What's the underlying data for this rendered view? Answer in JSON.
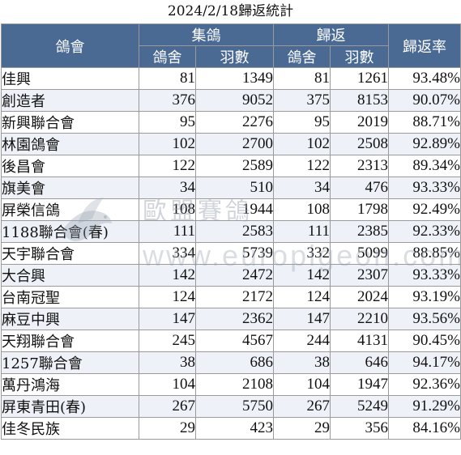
{
  "title": "2024/2/18歸返統計",
  "headers": {
    "club": "鴿會",
    "collected": "集鴿",
    "returned": "歸返",
    "rate": "歸返率",
    "lofts": "鴿舍",
    "birds": "羽數"
  },
  "watermark": {
    "text": "歐盟賽鴿",
    "url": "www.europigeon.com"
  },
  "rows": [
    {
      "club": "佳興",
      "c_lofts": "81",
      "c_birds": "1349",
      "r_lofts": "81",
      "r_birds": "1261",
      "rate": "93.48%"
    },
    {
      "club": "創造者",
      "c_lofts": "376",
      "c_birds": "9052",
      "r_lofts": "375",
      "r_birds": "8153",
      "rate": "90.07%"
    },
    {
      "club": "新興聯合會",
      "c_lofts": "95",
      "c_birds": "2276",
      "r_lofts": "95",
      "r_birds": "2019",
      "rate": "88.71%"
    },
    {
      "club": "林園鴿會",
      "c_lofts": "102",
      "c_birds": "2700",
      "r_lofts": "102",
      "r_birds": "2508",
      "rate": "92.89%"
    },
    {
      "club": "後昌會",
      "c_lofts": "122",
      "c_birds": "2589",
      "r_lofts": "122",
      "r_birds": "2313",
      "rate": "89.34%"
    },
    {
      "club": "旗美會",
      "c_lofts": "34",
      "c_birds": "510",
      "r_lofts": "34",
      "r_birds": "476",
      "rate": "93.33%"
    },
    {
      "club": "屏榮信鴿",
      "c_lofts": "108",
      "c_birds": "1944",
      "r_lofts": "108",
      "r_birds": "1798",
      "rate": "92.49%"
    },
    {
      "club": "1188聯合會(春)",
      "c_lofts": "111",
      "c_birds": "2583",
      "r_lofts": "111",
      "r_birds": "2385",
      "rate": "92.33%"
    },
    {
      "club": "天宇聯合會",
      "c_lofts": "334",
      "c_birds": "5739",
      "r_lofts": "332",
      "r_birds": "5099",
      "rate": "88.85%"
    },
    {
      "club": "大合興",
      "c_lofts": "142",
      "c_birds": "2472",
      "r_lofts": "142",
      "r_birds": "2307",
      "rate": "93.33%"
    },
    {
      "club": "台南冠聖",
      "c_lofts": "124",
      "c_birds": "2172",
      "r_lofts": "124",
      "r_birds": "2024",
      "rate": "93.19%"
    },
    {
      "club": "麻豆中興",
      "c_lofts": "147",
      "c_birds": "2362",
      "r_lofts": "147",
      "r_birds": "2210",
      "rate": "93.56%"
    },
    {
      "club": "天翔聯合會",
      "c_lofts": "245",
      "c_birds": "4567",
      "r_lofts": "244",
      "r_birds": "4131",
      "rate": "90.45%"
    },
    {
      "club": "1257聯合會",
      "c_lofts": "38",
      "c_birds": "686",
      "r_lofts": "38",
      "r_birds": "646",
      "rate": "94.17%"
    },
    {
      "club": "萬丹鴻海",
      "c_lofts": "104",
      "c_birds": "2108",
      "r_lofts": "104",
      "r_birds": "1947",
      "rate": "92.36%"
    },
    {
      "club": "屏東青田(春)",
      "c_lofts": "267",
      "c_birds": "5750",
      "r_lofts": "267",
      "r_birds": "5249",
      "rate": "91.29%"
    },
    {
      "club": "佳冬民族",
      "c_lofts": "29",
      "c_birds": "423",
      "r_lofts": "29",
      "r_birds": "356",
      "rate": "84.16%"
    }
  ],
  "colors": {
    "header_bg": "#4a6a94",
    "header_text": "#ffffff",
    "row_alt": "#eef2f8",
    "border": "#9a9a9a"
  }
}
